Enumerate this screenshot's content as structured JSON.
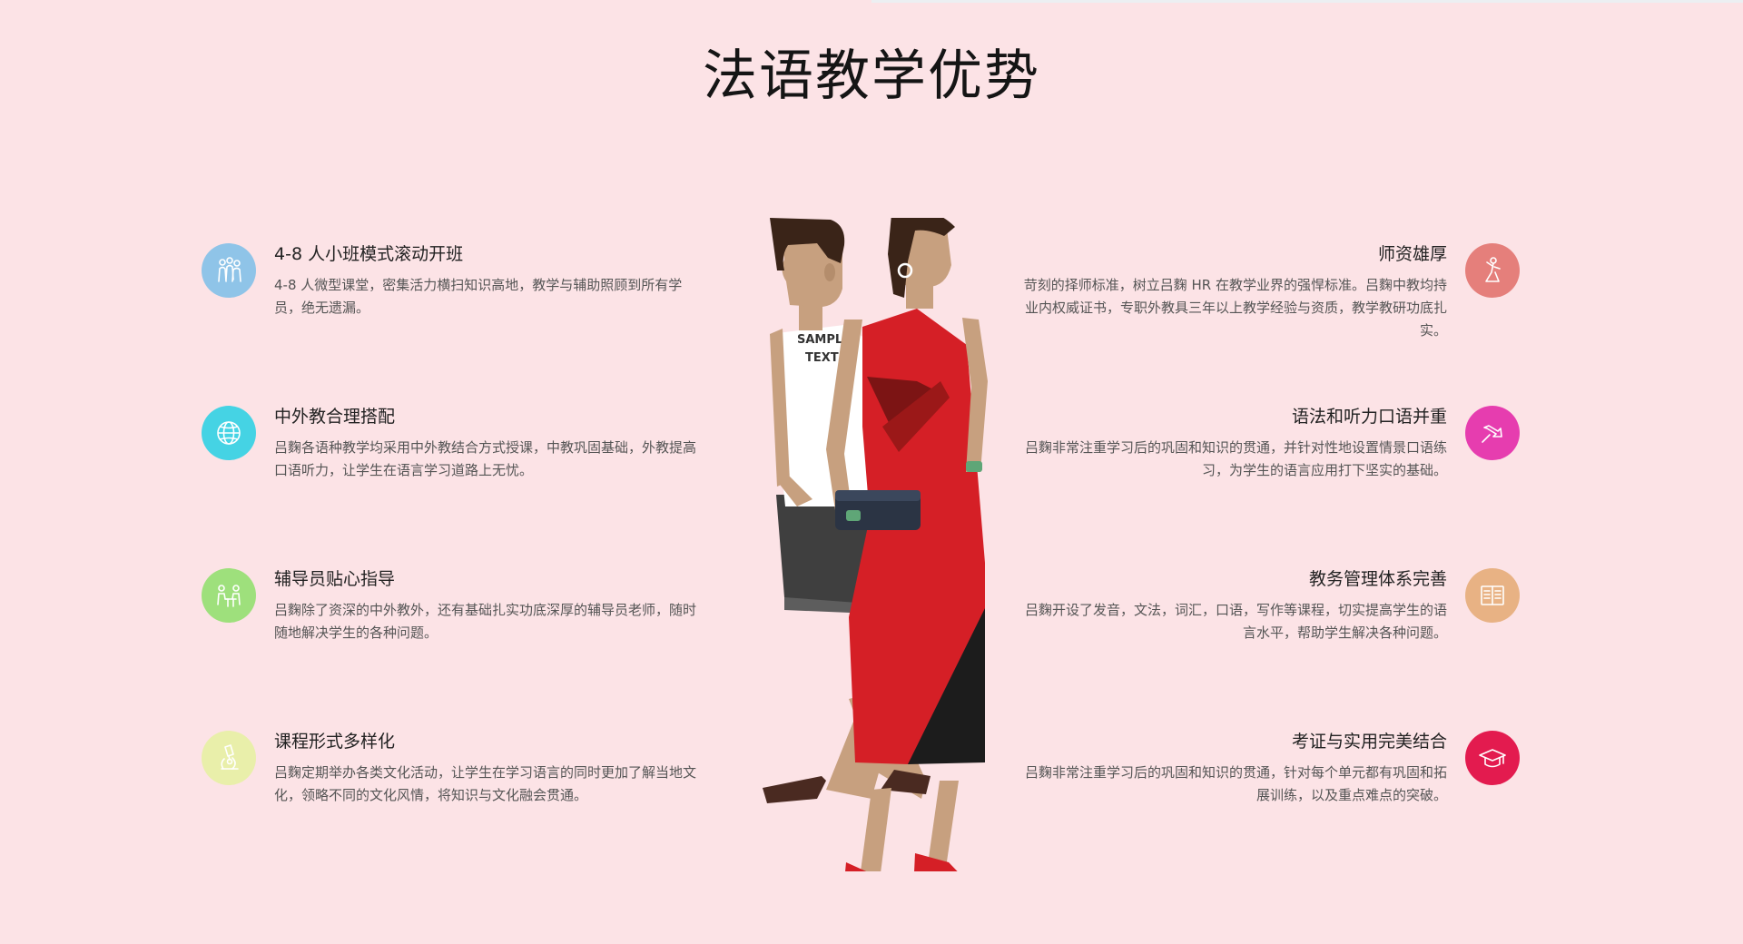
{
  "page": {
    "title": "法语教学优势"
  },
  "colors": {
    "background": "#fce3e6",
    "dress_red": "#d51f26"
  },
  "features_left": [
    {
      "title": "4-8 人小班模式滚动开班",
      "desc": "4-8 人微型课堂，密集活力横扫知识高地，教学与辅助照顾到所有学员，绝无遗漏。",
      "icon": "group-people-icon",
      "color": "#8fc4e8"
    },
    {
      "title": "中外教合理搭配",
      "desc": "吕麴各语种教学均采用中外教结合方式授课，中教巩固基础，外教提高口语听力，让学生在语言学习道路上无忧。",
      "icon": "globe-icon",
      "color": "#45d3e4"
    },
    {
      "title": "辅导员贴心指导",
      "desc": "吕麴除了资深的中外教外，还有基础扎实功底深厚的辅导员老师，随时随地解决学生的各种问题。",
      "icon": "tutoring-desk-icon",
      "color": "#9ee07c"
    },
    {
      "title": "课程形式多样化",
      "desc": "吕麴定期举办各类文化活动，让学生在学习语言的同时更加了解当地文化，领略不同的文化风情，将知识与文化融会贯通。",
      "icon": "microscope-icon",
      "color": "#e9efaa"
    }
  ],
  "features_right": [
    {
      "title": "师资雄厚",
      "desc": "苛刻的择师标准，树立吕麴 HR 在教学业界的强悍标准。吕麴中教均持业内权威证书，专职外教具三年以上教学经验与资质，教学教研功底扎实。",
      "icon": "teacher-icon",
      "color": "#e57f7b"
    },
    {
      "title": "语法和听力口语并重",
      "desc": "吕麴非常注重学习后的巩固和知识的贯通，并针对性地设置情景口语练习，为学生的语言应用打下坚实的基础。",
      "icon": "pushpin-icon",
      "color": "#e63daf"
    },
    {
      "title": "教务管理体系完善",
      "desc": "吕麴开设了发音，文法，词汇，口语，写作等课程，切实提高学生的语言水平，帮助学生解决各种问题。",
      "icon": "open-book-icon",
      "color": "#e8b284"
    },
    {
      "title": "考证与实用完美结合",
      "desc": "吕麴非常注重学习后的巩固和知识的贯通，针对每个单元都有巩固和拓展训练，以及重点难点的突破。",
      "icon": "graduation-cap-icon",
      "color": "#e31b4f"
    }
  ],
  "illustration": {
    "shirt_text_line1": "SAMPLE",
    "shirt_text_line2": "TEXT"
  }
}
